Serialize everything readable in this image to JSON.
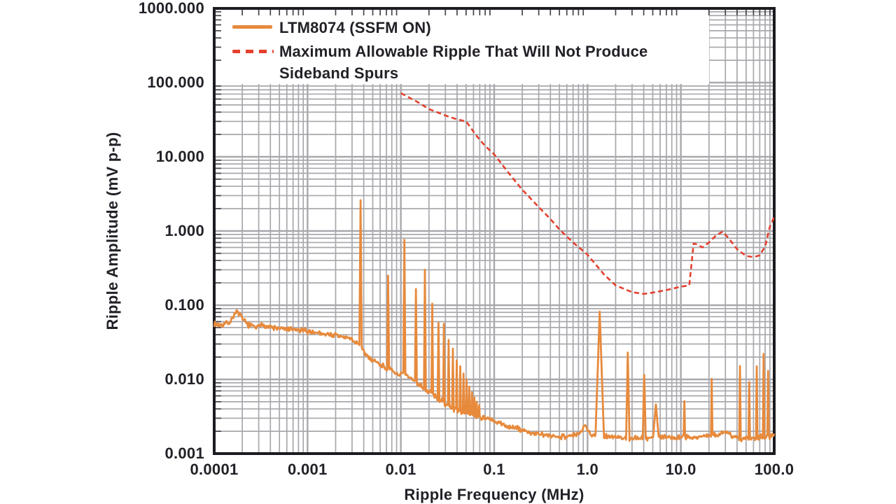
{
  "chart_data": {
    "type": "line",
    "title": "",
    "xlabel": "Ripple Frequency (MHz)",
    "ylabel": "Ripple Amplitude (mV p-p)",
    "x_scale": "log",
    "y_scale": "log",
    "xlim": [
      0.0001,
      100
    ],
    "ylim": [
      0.001,
      1000
    ],
    "grid": true,
    "grid_color": "#a8a8ad",
    "ink_color": "#1c1b21",
    "legend_position": "top-left",
    "x_ticks": [
      {
        "label": "0.0001",
        "value": 0.0001
      },
      {
        "label": "0.001",
        "value": 0.001
      },
      {
        "label": "0.01",
        "value": 0.01
      },
      {
        "label": "0.1",
        "value": 0.1
      },
      {
        "label": "1.0",
        "value": 1.0
      },
      {
        "label": "10.0",
        "value": 10.0
      },
      {
        "label": "100.0",
        "value": 100.0
      }
    ],
    "y_ticks": [
      {
        "label": "1000.000",
        "value": 1000
      },
      {
        "label": "100.000",
        "value": 100
      },
      {
        "label": "10.000",
        "value": 10
      },
      {
        "label": "1.000",
        "value": 1
      },
      {
        "label": "0.100",
        "value": 0.1
      },
      {
        "label": "0.010",
        "value": 0.01
      },
      {
        "label": "0.001",
        "value": 0.001
      }
    ],
    "series": [
      {
        "name": "LTM8074 (SSFM ON)",
        "color": "#E78A3C",
        "style": "solid",
        "noise_log_amplitude": 0.045,
        "baseline_points": [
          [
            0.0001,
            0.056
          ],
          [
            0.00012,
            0.054
          ],
          [
            0.00015,
            0.06
          ],
          [
            0.00017,
            0.083
          ],
          [
            0.00019,
            0.072
          ],
          [
            0.00022,
            0.057
          ],
          [
            0.00026,
            0.051
          ],
          [
            0.0003,
            0.05
          ],
          [
            0.00033,
            0.056
          ],
          [
            0.00037,
            0.052
          ],
          [
            0.00045,
            0.049
          ],
          [
            0.0006,
            0.047
          ],
          [
            0.0008,
            0.046
          ],
          [
            0.001,
            0.0445
          ],
          [
            0.0014,
            0.042
          ],
          [
            0.002,
            0.039
          ],
          [
            0.0028,
            0.036
          ],
          [
            0.0034,
            0.031
          ],
          [
            0.0036,
            0.03
          ],
          [
            0.0039,
            0.024
          ],
          [
            0.0045,
            0.02
          ],
          [
            0.0055,
            0.017
          ],
          [
            0.007,
            0.0142
          ],
          [
            0.009,
            0.012
          ],
          [
            0.011,
            0.0115
          ],
          [
            0.014,
            0.0095
          ],
          [
            0.018,
            0.0075
          ],
          [
            0.022,
            0.0062
          ],
          [
            0.028,
            0.005
          ],
          [
            0.035,
            0.0042
          ],
          [
            0.045,
            0.0036
          ],
          [
            0.06,
            0.0033
          ],
          [
            0.08,
            0.003
          ],
          [
            0.1,
            0.0027
          ],
          [
            0.13,
            0.0024
          ],
          [
            0.17,
            0.0022
          ],
          [
            0.25,
            0.0019
          ],
          [
            0.35,
            0.00175
          ],
          [
            0.5,
            0.0017
          ],
          [
            0.7,
            0.00175
          ],
          [
            0.85,
            0.0019
          ],
          [
            0.95,
            0.0024
          ],
          [
            1.05,
            0.0019
          ],
          [
            1.2,
            0.0018
          ],
          [
            1.8,
            0.0017
          ],
          [
            2.2,
            0.00165
          ],
          [
            3.3,
            0.0016
          ],
          [
            4.6,
            0.00165
          ],
          [
            6,
            0.0017
          ],
          [
            8,
            0.00165
          ],
          [
            10,
            0.0017
          ],
          [
            13,
            0.00165
          ],
          [
            17,
            0.0017
          ],
          [
            25,
            0.0018
          ],
          [
            30,
            0.002
          ],
          [
            35,
            0.0017
          ],
          [
            45,
            0.0016
          ],
          [
            60,
            0.00165
          ],
          [
            80,
            0.0017
          ],
          [
            100,
            0.0017
          ]
        ],
        "spikes": [
          [
            0.0037,
            2.6,
            0.013
          ],
          [
            0.0073,
            0.25,
            0.011
          ],
          [
            0.0109,
            0.76,
            0.011
          ],
          [
            0.0145,
            0.165,
            0.01
          ],
          [
            0.0181,
            0.3,
            0.01
          ],
          [
            0.0217,
            0.105,
            0.009
          ],
          [
            0.0253,
            0.058,
            0.009
          ],
          [
            0.0289,
            0.056,
            0.008
          ],
          [
            0.0325,
            0.034,
            0.008
          ],
          [
            0.0361,
            0.026,
            0.008
          ],
          [
            0.0397,
            0.018,
            0.007
          ],
          [
            0.0433,
            0.015,
            0.007
          ],
          [
            0.0469,
            0.012,
            0.007
          ],
          [
            0.0505,
            0.01,
            0.007
          ],
          [
            0.054,
            0.008,
            0.006
          ],
          [
            0.0577,
            0.0067,
            0.006
          ],
          [
            0.0613,
            0.0057,
            0.006
          ],
          [
            0.0649,
            0.005,
            0.006
          ],
          [
            0.069,
            0.0045,
            0.006
          ],
          [
            1.35,
            0.082,
            0.045
          ],
          [
            2.7,
            0.023,
            0.018
          ],
          [
            4.05,
            0.0115,
            0.016
          ],
          [
            5.4,
            0.0046,
            0.03
          ],
          [
            10.9,
            0.0051,
            0.008
          ],
          [
            21.4,
            0.0102,
            0.008
          ],
          [
            43,
            0.0151,
            0.008
          ],
          [
            54,
            0.0092,
            0.008
          ],
          [
            65,
            0.015,
            0.008
          ],
          [
            77,
            0.022,
            0.008
          ],
          [
            86,
            0.013,
            0.008
          ]
        ]
      },
      {
        "name": "Maximum Allowable Ripple That Will Not Produce\nSideband Spurs",
        "color": "#E4402D",
        "style": "dashed",
        "points": [
          [
            0.01,
            72
          ],
          [
            0.015,
            55
          ],
          [
            0.02,
            44
          ],
          [
            0.03,
            36
          ],
          [
            0.04,
            32
          ],
          [
            0.05,
            30
          ],
          [
            0.065,
            19
          ],
          [
            0.08,
            14
          ],
          [
            0.1,
            10.8
          ],
          [
            0.15,
            5.6
          ],
          [
            0.2,
            3.6
          ],
          [
            0.3,
            2.1
          ],
          [
            0.4,
            1.45
          ],
          [
            0.5,
            1.05
          ],
          [
            0.7,
            0.7
          ],
          [
            1.0,
            0.48
          ],
          [
            1.5,
            0.26
          ],
          [
            2.0,
            0.185
          ],
          [
            3.0,
            0.15
          ],
          [
            4.0,
            0.142
          ],
          [
            5.0,
            0.148
          ],
          [
            7.0,
            0.16
          ],
          [
            10.0,
            0.178
          ],
          [
            12.3,
            0.185
          ],
          [
            13.7,
            0.68
          ],
          [
            15.0,
            0.66
          ],
          [
            17.0,
            0.6
          ],
          [
            20.0,
            0.7
          ],
          [
            24.0,
            0.88
          ],
          [
            28.0,
            0.98
          ],
          [
            33.0,
            0.78
          ],
          [
            40.0,
            0.57
          ],
          [
            50.0,
            0.46
          ],
          [
            60.0,
            0.445
          ],
          [
            70.0,
            0.47
          ],
          [
            80.0,
            0.62
          ],
          [
            90.0,
            1.15
          ],
          [
            100.0,
            1.55
          ]
        ]
      }
    ]
  }
}
